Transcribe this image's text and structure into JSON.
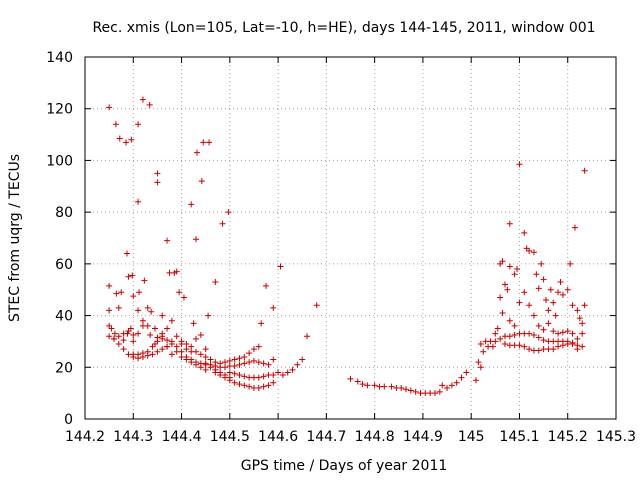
{
  "chart_data": {
    "type": "scatter",
    "title": "Rec. xmis (Lon=105, Lat=-10, h=HE), days 144-145, 2011, window 001",
    "xlabel": "GPS time / Days of year 2011",
    "ylabel": "STEC from uqrg / TECUs",
    "xlim": [
      144.2,
      145.3
    ],
    "ylim": [
      0,
      140
    ],
    "xticks": [
      "144.2",
      "144.3",
      "144.4",
      "144.5",
      "144.6",
      "144.7",
      "144.8",
      "144.9",
      "145",
      "145.1",
      "145.2",
      "145.3"
    ],
    "yticks": [
      "0",
      "20",
      "40",
      "60",
      "80",
      "100",
      "120",
      "140"
    ],
    "grid": true,
    "marker": "+",
    "color": "#cc0000",
    "points": [
      [
        144.25,
        120.5
      ],
      [
        144.264,
        114
      ],
      [
        144.272,
        108.5
      ],
      [
        144.285,
        107
      ],
      [
        144.296,
        108
      ],
      [
        144.31,
        114
      ],
      [
        144.32,
        123.5
      ],
      [
        144.334,
        121.5
      ],
      [
        144.35,
        95
      ],
      [
        144.35,
        91.5
      ],
      [
        144.31,
        84
      ],
      [
        144.25,
        51.5
      ],
      [
        144.265,
        48.5
      ],
      [
        144.275,
        49
      ],
      [
        144.287,
        64
      ],
      [
        144.29,
        55
      ],
      [
        144.298,
        55.5
      ],
      [
        144.3,
        47.5
      ],
      [
        144.312,
        49
      ],
      [
        144.323,
        53.5
      ],
      [
        144.33,
        43
      ],
      [
        144.337,
        41.5
      ],
      [
        144.345,
        35
      ],
      [
        144.36,
        33
      ],
      [
        144.37,
        69
      ],
      [
        144.375,
        56.5
      ],
      [
        144.385,
        56.5
      ],
      [
        144.39,
        57
      ],
      [
        144.395,
        49
      ],
      [
        144.405,
        47
      ],
      [
        144.42,
        83
      ],
      [
        144.425,
        37
      ],
      [
        144.43,
        69.5
      ],
      [
        144.432,
        103
      ],
      [
        144.442,
        92
      ],
      [
        144.445,
        107
      ],
      [
        144.457,
        107
      ],
      [
        144.455,
        40
      ],
      [
        144.47,
        53
      ],
      [
        144.485,
        75.5
      ],
      [
        144.497,
        80
      ],
      [
        144.25,
        42
      ],
      [
        144.255,
        35
      ],
      [
        144.262,
        33
      ],
      [
        144.27,
        43
      ],
      [
        144.28,
        30.5
      ],
      [
        144.288,
        33
      ],
      [
        144.295,
        35
      ],
      [
        144.3,
        32.5
      ],
      [
        144.31,
        42
      ],
      [
        144.32,
        38
      ],
      [
        144.33,
        36
      ],
      [
        144.345,
        29
      ],
      [
        144.36,
        40
      ],
      [
        144.37,
        35
      ],
      [
        144.38,
        38
      ],
      [
        144.25,
        36
      ],
      [
        144.26,
        31
      ],
      [
        144.27,
        32
      ],
      [
        144.28,
        33
      ],
      [
        144.29,
        34
      ],
      [
        144.3,
        30
      ],
      [
        144.31,
        33
      ],
      [
        144.32,
        36
      ],
      [
        144.335,
        32.5
      ],
      [
        144.35,
        31.5
      ],
      [
        144.36,
        32
      ],
      [
        144.37,
        30.5
      ],
      [
        144.38,
        30
      ],
      [
        144.39,
        32
      ],
      [
        144.4,
        29
      ],
      [
        144.41,
        27
      ],
      [
        144.42,
        26
      ],
      [
        144.43,
        31
      ],
      [
        144.44,
        32.5
      ],
      [
        144.45,
        27
      ],
      [
        144.25,
        32
      ],
      [
        144.26,
        31
      ],
      [
        144.27,
        29
      ],
      [
        144.28,
        27
      ],
      [
        144.29,
        25
      ],
      [
        144.3,
        24
      ],
      [
        144.31,
        23.5
      ],
      [
        144.32,
        24
      ],
      [
        144.33,
        24.5
      ],
      [
        144.34,
        25
      ],
      [
        144.35,
        26
      ],
      [
        144.36,
        27
      ],
      [
        144.37,
        28
      ],
      [
        144.38,
        29
      ],
      [
        144.39,
        28
      ],
      [
        144.4,
        26
      ],
      [
        144.41,
        24
      ],
      [
        144.42,
        23
      ],
      [
        144.43,
        22
      ],
      [
        144.44,
        21.5
      ],
      [
        144.45,
        21
      ],
      [
        144.46,
        20
      ],
      [
        144.47,
        19
      ],
      [
        144.48,
        18
      ],
      [
        144.49,
        17
      ],
      [
        144.5,
        16
      ],
      [
        144.3,
        25
      ],
      [
        144.31,
        25
      ],
      [
        144.32,
        25.5
      ],
      [
        144.33,
        26
      ],
      [
        144.34,
        28
      ],
      [
        144.35,
        30
      ],
      [
        144.36,
        31
      ],
      [
        144.37,
        28
      ],
      [
        144.38,
        25
      ],
      [
        144.39,
        26
      ],
      [
        144.4,
        24
      ],
      [
        144.41,
        23
      ],
      [
        144.42,
        22
      ],
      [
        144.43,
        21
      ],
      [
        144.44,
        20
      ],
      [
        144.45,
        19
      ],
      [
        144.4,
        30
      ],
      [
        144.41,
        29
      ],
      [
        144.42,
        28
      ],
      [
        144.43,
        26
      ],
      [
        144.44,
        25
      ],
      [
        144.45,
        24
      ],
      [
        144.46,
        23
      ],
      [
        144.47,
        22
      ],
      [
        144.48,
        21.5
      ],
      [
        144.49,
        22
      ],
      [
        144.5,
        22.5
      ],
      [
        144.51,
        23
      ],
      [
        144.52,
        23.5
      ],
      [
        144.53,
        24
      ],
      [
        144.54,
        25.5
      ],
      [
        144.55,
        27
      ],
      [
        144.56,
        28
      ],
      [
        144.45,
        21.5
      ],
      [
        144.46,
        21
      ],
      [
        144.47,
        20.5
      ],
      [
        144.48,
        20
      ],
      [
        144.49,
        20
      ],
      [
        144.5,
        20.5
      ],
      [
        144.51,
        20.5
      ],
      [
        144.52,
        21
      ],
      [
        144.53,
        21.5
      ],
      [
        144.54,
        22
      ],
      [
        144.55,
        22.5
      ],
      [
        144.56,
        22
      ],
      [
        144.57,
        21.5
      ],
      [
        144.58,
        21
      ],
      [
        144.59,
        23
      ],
      [
        144.47,
        18
      ],
      [
        144.48,
        17
      ],
      [
        144.49,
        16
      ],
      [
        144.5,
        15
      ],
      [
        144.51,
        14
      ],
      [
        144.52,
        13.5
      ],
      [
        144.53,
        13
      ],
      [
        144.54,
        12.5
      ],
      [
        144.55,
        12
      ],
      [
        144.56,
        12
      ],
      [
        144.57,
        12.5
      ],
      [
        144.58,
        13
      ],
      [
        144.59,
        14
      ],
      [
        144.5,
        18
      ],
      [
        144.51,
        17.5
      ],
      [
        144.52,
        17
      ],
      [
        144.53,
        16.5
      ],
      [
        144.54,
        16
      ],
      [
        144.55,
        16
      ],
      [
        144.56,
        16
      ],
      [
        144.57,
        16.5
      ],
      [
        144.58,
        17
      ],
      [
        144.59,
        17
      ],
      [
        144.6,
        18
      ],
      [
        144.61,
        17
      ],
      [
        144.62,
        18
      ],
      [
        144.63,
        19
      ],
      [
        144.64,
        21
      ],
      [
        144.65,
        23
      ],
      [
        144.565,
        37
      ],
      [
        144.575,
        51.5
      ],
      [
        144.59,
        43
      ],
      [
        144.605,
        59
      ],
      [
        144.66,
        32
      ],
      [
        144.68,
        44
      ],
      [
        144.75,
        15.5
      ],
      [
        144.765,
        14.5
      ],
      [
        144.775,
        13.5
      ],
      [
        144.785,
        13
      ],
      [
        144.8,
        13
      ],
      [
        144.81,
        12.5
      ],
      [
        144.82,
        12.5
      ],
      [
        144.835,
        12.5
      ],
      [
        144.845,
        12
      ],
      [
        144.855,
        12
      ],
      [
        144.865,
        11.5
      ],
      [
        144.875,
        11
      ],
      [
        144.885,
        10.5
      ],
      [
        144.895,
        10
      ],
      [
        144.905,
        10
      ],
      [
        144.915,
        10
      ],
      [
        144.925,
        10
      ],
      [
        144.935,
        10.5
      ],
      [
        144.94,
        13
      ],
      [
        144.95,
        12
      ],
      [
        144.96,
        13
      ],
      [
        144.97,
        14
      ],
      [
        144.98,
        16
      ],
      [
        144.99,
        18
      ],
      [
        145.01,
        15
      ],
      [
        145.015,
        22
      ],
      [
        145.02,
        20
      ],
      [
        145.02,
        29
      ],
      [
        145.025,
        26
      ],
      [
        145.03,
        30
      ],
      [
        145.035,
        28
      ],
      [
        145.04,
        30
      ],
      [
        145.045,
        28
      ],
      [
        145.05,
        33
      ],
      [
        145.055,
        35
      ],
      [
        145.05,
        30
      ],
      [
        145.06,
        31
      ],
      [
        145.07,
        29
      ],
      [
        145.08,
        28.5
      ],
      [
        145.09,
        28.5
      ],
      [
        145.1,
        28.5
      ],
      [
        145.11,
        28
      ],
      [
        145.12,
        27
      ],
      [
        145.13,
        26.5
      ],
      [
        145.14,
        26.5
      ],
      [
        145.15,
        27
      ],
      [
        145.16,
        27
      ],
      [
        145.17,
        27
      ],
      [
        145.18,
        28
      ],
      [
        145.19,
        28.5
      ],
      [
        145.2,
        29
      ],
      [
        145.21,
        29
      ],
      [
        145.22,
        28.5
      ],
      [
        145.23,
        28
      ],
      [
        145.07,
        32
      ],
      [
        145.08,
        32
      ],
      [
        145.09,
        32.5
      ],
      [
        145.1,
        33
      ],
      [
        145.11,
        33
      ],
      [
        145.12,
        33
      ],
      [
        145.13,
        32.5
      ],
      [
        145.14,
        31.5
      ],
      [
        145.15,
        30.5
      ],
      [
        145.16,
        30
      ],
      [
        145.17,
        30
      ],
      [
        145.18,
        30
      ],
      [
        145.19,
        30
      ],
      [
        145.2,
        30
      ],
      [
        145.21,
        29.5
      ],
      [
        145.22,
        27
      ],
      [
        145.06,
        47
      ],
      [
        145.065,
        41
      ],
      [
        145.07,
        52
      ],
      [
        145.075,
        50
      ],
      [
        145.08,
        38
      ],
      [
        145.09,
        36
      ],
      [
        145.1,
        45
      ],
      [
        145.11,
        49
      ],
      [
        145.12,
        44
      ],
      [
        145.13,
        40
      ],
      [
        145.14,
        36
      ],
      [
        145.15,
        34.5
      ],
      [
        145.16,
        37
      ],
      [
        145.17,
        34
      ],
      [
        145.18,
        33
      ],
      [
        145.19,
        33.5
      ],
      [
        145.2,
        34
      ],
      [
        145.21,
        33
      ],
      [
        145.22,
        31
      ],
      [
        145.23,
        33
      ],
      [
        145.06,
        60
      ],
      [
        145.065,
        61
      ],
      [
        145.08,
        59
      ],
      [
        145.08,
        75.5
      ],
      [
        145.095,
        58
      ],
      [
        145.09,
        56
      ],
      [
        145.1,
        98.5
      ],
      [
        145.11,
        72
      ],
      [
        145.115,
        66
      ],
      [
        145.12,
        65
      ],
      [
        145.13,
        64.5
      ],
      [
        145.135,
        56
      ],
      [
        145.14,
        50.5
      ],
      [
        145.145,
        60
      ],
      [
        145.15,
        54
      ],
      [
        145.155,
        46
      ],
      [
        145.16,
        42
      ],
      [
        145.165,
        50
      ],
      [
        145.17,
        45
      ],
      [
        145.175,
        40
      ],
      [
        145.18,
        49
      ],
      [
        145.185,
        53
      ],
      [
        145.19,
        48
      ],
      [
        145.2,
        50
      ],
      [
        145.205,
        60
      ],
      [
        145.21,
        44
      ],
      [
        145.215,
        74
      ],
      [
        145.22,
        42
      ],
      [
        145.225,
        39
      ],
      [
        145.23,
        37
      ],
      [
        145.235,
        44
      ],
      [
        145.235,
        96
      ]
    ]
  }
}
